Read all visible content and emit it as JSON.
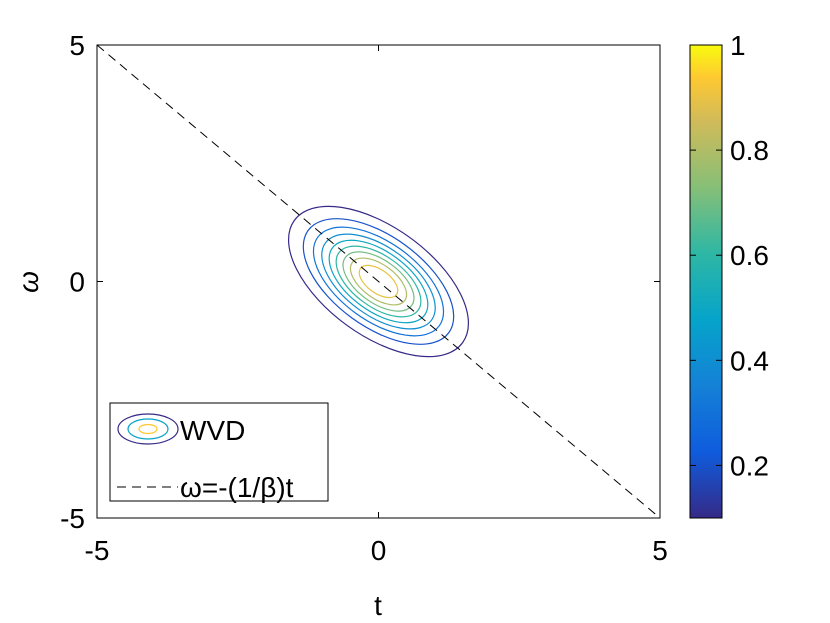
{
  "chart_data": {
    "type": "contour",
    "xlabel": "t",
    "ylabel": "ω",
    "xlim": [
      -5,
      5
    ],
    "ylim": [
      -5,
      5
    ],
    "xticks": [
      "-5",
      "0",
      "5"
    ],
    "yticks": [
      "-5",
      "0",
      "5"
    ],
    "grid": false,
    "legend_position": "bottom-left",
    "legend": [
      {
        "label": "WVD",
        "style": "contour"
      },
      {
        "label": "ω=-(1/β)t",
        "style": "dashed"
      }
    ],
    "series": [
      {
        "name": "WVD",
        "type": "contour",
        "center": [
          0,
          0
        ],
        "contour_levels": [
          0.1,
          0.2,
          0.3,
          0.4,
          0.5,
          0.6,
          0.7,
          0.8,
          0.9
        ],
        "outer_contour_extent_t": [
          -1.7,
          1.7
        ],
        "outer_contour_extent_omega": [
          -1.8,
          1.6
        ]
      },
      {
        "name": "ω=-(1/β)t",
        "type": "line",
        "style": "dashed",
        "color": "#000000",
        "x": [
          -5,
          5
        ],
        "y": [
          5,
          -5
        ]
      }
    ],
    "colorbar": {
      "range": [
        0.1,
        1
      ],
      "ticks": [
        "0.2",
        "0.4",
        "0.6",
        "0.8",
        "1"
      ],
      "tick_values": [
        0.2,
        0.4,
        0.6,
        0.8,
        1.0
      ],
      "colormap": "parula"
    }
  }
}
